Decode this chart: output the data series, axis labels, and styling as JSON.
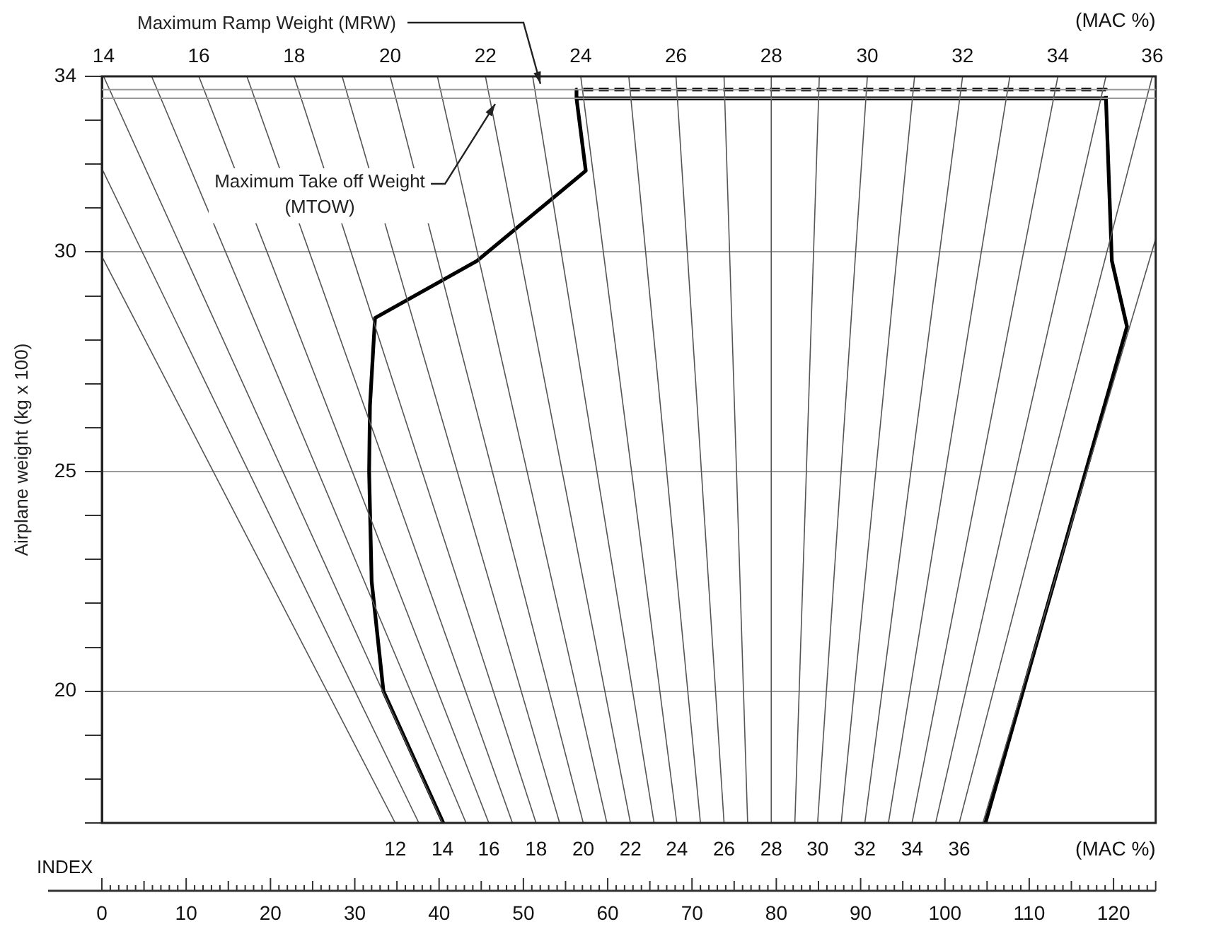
{
  "chart_data": {
    "type": "line",
    "ylabel": "Airplane weight (kg x 100)",
    "xlabel": "INDEX",
    "xlim": [
      0,
      125
    ],
    "ylim": [
      17,
      34
    ],
    "xticks": [
      0,
      10,
      20,
      30,
      40,
      50,
      60,
      70,
      80,
      90,
      100,
      110,
      120
    ],
    "yticks": [
      {
        "value": 17,
        "label": null
      },
      {
        "value": 18,
        "label": null
      },
      {
        "value": 19,
        "label": null
      },
      20,
      {
        "value": 21,
        "label": null
      },
      {
        "value": 22,
        "label": null
      },
      {
        "value": 23,
        "label": null
      },
      {
        "value": 24,
        "label": null
      },
      25,
      {
        "value": 26,
        "label": null
      },
      {
        "value": 27,
        "label": null
      },
      {
        "value": 28,
        "label": null
      },
      {
        "value": 29,
        "label": null
      },
      30,
      {
        "value": 31,
        "label": null
      },
      {
        "value": 32,
        "label": null
      },
      {
        "value": 33,
        "label": null
      },
      34
    ],
    "grid": "y",
    "legend": false,
    "ref_lines": [
      {
        "axis": "y",
        "value": 33.7,
        "label": "Maximum Ramp Weight (MRW)",
        "color": "#999999"
      },
      {
        "axis": "y",
        "value": 33.5,
        "label": "Maximum Take off Weight (MTOW)",
        "color": "#999999"
      }
    ],
    "series": [
      {
        "color": "#555555",
        "x": [
          34.8,
          0
        ],
        "values": [
          17,
          29.9
        ]
      },
      {
        "color": "#555555",
        "x": [
          37.6,
          0
        ],
        "values": [
          17,
          31.9
        ]
      },
      {
        "color": "#555555",
        "x": [
          40.4,
          0.2
        ],
        "values": [
          17,
          34
        ]
      },
      {
        "color": "#555555",
        "x": [
          43.2,
          5.9
        ],
        "values": [
          17,
          34
        ]
      },
      {
        "color": "#555555",
        "x": [
          45.9,
          11.5
        ],
        "values": [
          17,
          34
        ]
      },
      {
        "color": "#555555",
        "x": [
          48.7,
          17.2
        ],
        "values": [
          17,
          34
        ]
      },
      {
        "color": "#555555",
        "x": [
          51.5,
          22.8
        ],
        "values": [
          17,
          34
        ]
      },
      {
        "color": "#555555",
        "x": [
          54.3,
          28.5
        ],
        "values": [
          17,
          34
        ]
      },
      {
        "color": "#555555",
        "x": [
          57.1,
          34.2
        ],
        "values": [
          17,
          34
        ]
      },
      {
        "color": "#555555",
        "x": [
          59.9,
          39.8
        ],
        "values": [
          17,
          34
        ]
      },
      {
        "color": "#555555",
        "x": [
          62.7,
          45.5
        ],
        "values": [
          17,
          34
        ]
      },
      {
        "color": "#555555",
        "x": [
          65.5,
          51.1
        ],
        "values": [
          17,
          34
        ]
      },
      {
        "color": "#555555",
        "x": [
          68.2,
          56.8
        ],
        "values": [
          17,
          34
        ]
      },
      {
        "color": "#555555",
        "x": [
          71.0,
          62.5
        ],
        "values": [
          17,
          34
        ]
      },
      {
        "color": "#555555",
        "x": [
          73.8,
          68.1
        ],
        "values": [
          17,
          34
        ]
      },
      {
        "color": "#555555",
        "x": [
          76.6,
          73.8
        ],
        "values": [
          17,
          34
        ]
      },
      {
        "color": "#555555",
        "x": [
          79.4,
          79.4
        ],
        "values": [
          17,
          34
        ]
      },
      {
        "color": "#555555",
        "x": [
          82.2,
          85.1
        ],
        "values": [
          17,
          34
        ]
      },
      {
        "color": "#555555",
        "x": [
          84.9,
          90.8
        ],
        "values": [
          17,
          34
        ]
      },
      {
        "color": "#555555",
        "x": [
          87.7,
          96.4
        ],
        "values": [
          17,
          34
        ]
      },
      {
        "color": "#555555",
        "x": [
          90.5,
          102.1
        ],
        "values": [
          17,
          34
        ]
      },
      {
        "color": "#555555",
        "x": [
          93.3,
          107.7
        ],
        "values": [
          17,
          34
        ]
      },
      {
        "color": "#555555",
        "x": [
          96.1,
          113.4
        ],
        "values": [
          17,
          34
        ]
      },
      {
        "color": "#555555",
        "x": [
          98.9,
          119.1
        ],
        "values": [
          17,
          34
        ]
      },
      {
        "color": "#555555",
        "x": [
          101.7,
          124.6
        ],
        "values": [
          17,
          34
        ]
      },
      {
        "color": "#555555",
        "x": [
          104.5,
          125
        ],
        "values": [
          17,
          30.3
        ]
      },
      {
        "color": "#000000",
        "x": [
          40.5,
          33.4,
          32.0,
          31.7,
          31.8,
          32.4,
          44.5,
          57.4,
          56.3,
          119.1,
          119.8,
          121.6,
          104.8
        ],
        "values": [
          17,
          20,
          22.5,
          25,
          26.5,
          28.5,
          29.8,
          31.85,
          33.5,
          33.5,
          29.8,
          28.3,
          17
        ]
      },
      {
        "color": "#000000",
        "line_style": "dashed",
        "x": [
          56.3,
          56.3,
          119.1,
          119.1
        ],
        "values": [
          33.5,
          33.7,
          33.7,
          33.5
        ]
      }
    ],
    "annotations": [
      "(MAC %)",
      "(MAC %)",
      {
        "text": "12",
        "x": 34.8,
        "y": 17
      },
      {
        "text": "14",
        "x": 40.4,
        "y": 17
      },
      {
        "text": "16",
        "x": 45.9,
        "y": 17
      },
      {
        "text": "18",
        "x": 51.5,
        "y": 17
      },
      {
        "text": "20",
        "x": 57.1,
        "y": 17
      },
      {
        "text": "22",
        "x": 62.7,
        "y": 17
      },
      {
        "text": "24",
        "x": 68.2,
        "y": 17
      },
      {
        "text": "26",
        "x": 73.8,
        "y": 17
      },
      {
        "text": "28",
        "x": 79.4,
        "y": 17
      },
      {
        "text": "30",
        "x": 84.9,
        "y": 17
      },
      {
        "text": "32",
        "x": 90.5,
        "y": 17
      },
      {
        "text": "34",
        "x": 96.1,
        "y": 17
      },
      {
        "text": "36",
        "x": 101.7,
        "y": 17
      },
      {
        "text": "14",
        "x": 0.2,
        "y": 34
      },
      {
        "text": "16",
        "x": 11.5,
        "y": 34
      },
      {
        "text": "18",
        "x": 22.8,
        "y": 34
      },
      {
        "text": "20",
        "x": 34.2,
        "y": 34
      },
      {
        "text": "22",
        "x": 45.5,
        "y": 34
      },
      {
        "text": "24",
        "x": 56.8,
        "y": 34
      },
      {
        "text": "26",
        "x": 68.1,
        "y": 34
      },
      {
        "text": "28",
        "x": 79.4,
        "y": 34
      },
      {
        "text": "30",
        "x": 90.8,
        "y": 34
      },
      {
        "text": "32",
        "x": 102.1,
        "y": 34
      },
      {
        "text": "34",
        "x": 113.4,
        "y": 34
      },
      {
        "text": "36",
        "x": 124.6,
        "y": 34
      }
    ]
  }
}
